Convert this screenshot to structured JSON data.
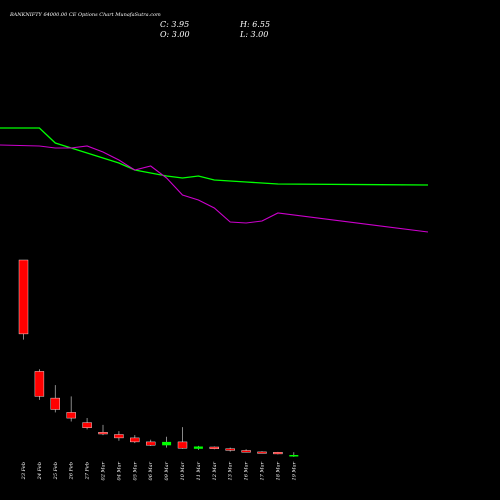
{
  "header": {
    "title": "BANKNIFTY 64000.00 CE Options Chart MunafaSutra.com",
    "open_label": "O: 3.00",
    "close_label": "C: 3.95",
    "high_label": "H: 6.55",
    "low_label": "L: 3.00"
  },
  "colors": {
    "background": "#000000",
    "up_candle": "#00ff00",
    "down_candle": "#ff0000",
    "green_line": "#00ff00",
    "magenta_line": "#cc00cc",
    "wick": "#aaaaaa",
    "text": "#ffffff"
  },
  "chart_data": {
    "type": "candlestick",
    "title": "BANKNIFTY 64000.00 CE Options Chart MunafaSutra.com",
    "categories": [
      "23 Feb",
      "24 Feb",
      "25 Feb",
      "26 Feb",
      "27 Feb",
      "02 Mar",
      "04 Mar",
      "05 Mar",
      "06 Mar",
      "09 Mar",
      "10 Mar",
      "11 Mar",
      "12 Mar",
      "13 Mar",
      "16 Mar",
      "17 Mar",
      "18 Mar",
      "19 Mar"
    ],
    "candles": [
      {
        "open": 170.0,
        "high": 170.0,
        "low": 100.0,
        "close": 105.0
      },
      {
        "open": 72.0,
        "high": 74.0,
        "low": 47.0,
        "close": 50.0
      },
      {
        "open": 48.5,
        "high": 60.0,
        "low": 36.0,
        "close": 38.5
      },
      {
        "open": 36.0,
        "high": 50.0,
        "low": 28.0,
        "close": 31.0
      },
      {
        "open": 27.0,
        "high": 31.0,
        "low": 21.0,
        "close": 22.5
      },
      {
        "open": 18.5,
        "high": 25.0,
        "low": 16.0,
        "close": 17.0
      },
      {
        "open": 16.5,
        "high": 19.5,
        "low": 11.0,
        "close": 13.5
      },
      {
        "open": 13.5,
        "high": 16.0,
        "low": 9.0,
        "close": 10.0
      },
      {
        "open": 10.0,
        "high": 12.0,
        "low": 6.5,
        "close": 7.0
      },
      {
        "open": 7.0,
        "high": 14.5,
        "low": 5.0,
        "close": 10.0
      },
      {
        "open": 10.0,
        "high": 23.0,
        "low": 4.0,
        "close": 4.5
      },
      {
        "open": 4.0,
        "high": 6.5,
        "low": 3.0,
        "close": 6.0
      },
      {
        "open": 5.5,
        "high": 6.0,
        "low": 3.5,
        "close": 4.0
      },
      {
        "open": 4.0,
        "high": 5.0,
        "low": 1.5,
        "close": 2.5
      },
      {
        "open": 2.5,
        "high": 3.5,
        "low": 0.8,
        "close": 1.0
      },
      {
        "open": 1.2,
        "high": 1.8,
        "low": 0.5,
        "close": 0.8
      },
      {
        "open": 0.9,
        "high": 1.2,
        "low": -1.0,
        "close": -0.5
      },
      {
        "open": -2.2,
        "high": 1.0,
        "low": -3.2,
        "close": -1.5
      }
    ],
    "series": [
      {
        "values": [
          360,
          360,
          345,
          340,
          335,
          330,
          325,
          318,
          315,
          312,
          310,
          312,
          308,
          307,
          306,
          305,
          304,
          303
        ]
      },
      {
        "values": [
          343,
          342,
          340,
          340,
          342,
          336,
          328,
          318,
          322,
          310,
          293,
          288,
          280,
          266,
          265,
          267,
          275,
          256
        ]
      }
    ]
  }
}
